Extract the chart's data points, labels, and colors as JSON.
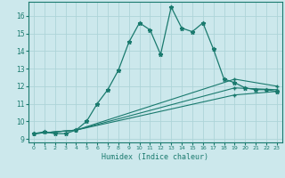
{
  "xlabel": "Humidex (Indice chaleur)",
  "background_color": "#cce8ec",
  "line_color": "#1a7a6e",
  "grid_color": "#add4d8",
  "xlim": [
    -0.5,
    23.5
  ],
  "ylim": [
    8.8,
    16.8
  ],
  "xticks": [
    0,
    1,
    2,
    3,
    4,
    5,
    6,
    7,
    8,
    9,
    10,
    11,
    12,
    13,
    14,
    15,
    16,
    17,
    18,
    19,
    20,
    21,
    22,
    23
  ],
  "yticks": [
    9,
    10,
    11,
    12,
    13,
    14,
    15,
    16
  ],
  "series1_x": [
    0,
    1,
    2,
    3,
    4,
    5,
    6,
    7,
    8,
    9,
    10,
    11,
    12,
    13,
    14,
    15,
    16,
    17,
    18,
    19,
    20,
    21,
    22,
    23
  ],
  "series1_y": [
    9.3,
    9.4,
    9.3,
    9.3,
    9.5,
    10.0,
    11.0,
    11.8,
    12.9,
    14.5,
    15.6,
    15.2,
    13.8,
    16.5,
    15.3,
    15.1,
    15.6,
    14.1,
    12.4,
    12.2,
    11.9,
    11.8,
    11.8,
    11.7
  ],
  "series2_x": [
    0,
    4,
    19,
    23
  ],
  "series2_y": [
    9.3,
    9.5,
    12.4,
    12.0
  ],
  "series3_x": [
    0,
    4,
    19,
    23
  ],
  "series3_y": [
    9.3,
    9.5,
    11.9,
    11.8
  ],
  "series4_x": [
    0,
    4,
    19,
    23
  ],
  "series4_y": [
    9.3,
    9.5,
    11.5,
    11.7
  ]
}
